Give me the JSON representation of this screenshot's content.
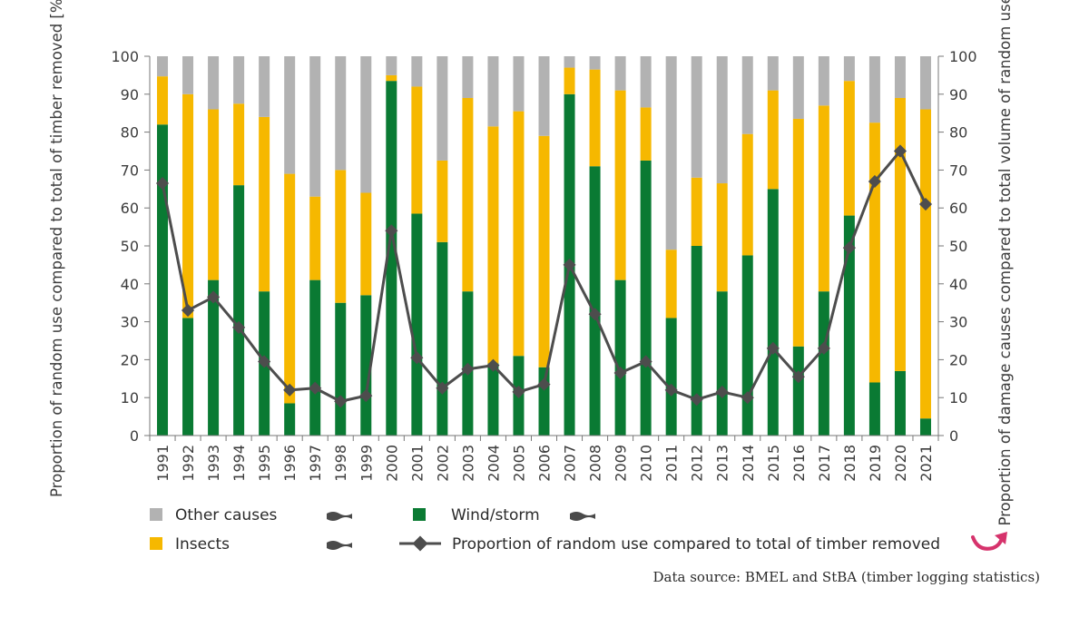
{
  "chart_data": {
    "type": "bar",
    "stacked": true,
    "categories": [
      "1991",
      "1992",
      "1993",
      "1994",
      "1995",
      "1996",
      "1997",
      "1998",
      "1999",
      "2000",
      "2001",
      "2002",
      "2003",
      "2004",
      "2005",
      "2006",
      "2007",
      "2008",
      "2009",
      "2010",
      "2011",
      "2012",
      "2013",
      "2014",
      "2015",
      "2016",
      "2017",
      "2018",
      "2019",
      "2020",
      "2021"
    ],
    "series": [
      {
        "name": "Wind/storm",
        "color": "#0a7a33",
        "values": [
          82,
          31,
          41,
          66,
          38,
          8.5,
          41,
          35,
          37,
          93.5,
          58.5,
          51,
          38,
          19,
          21,
          18,
          90,
          71,
          41,
          72.5,
          31,
          50,
          38,
          47.5,
          65,
          23.5,
          38,
          58,
          14,
          17,
          4.5
        ]
      },
      {
        "name": "Insects",
        "color": "#f6b800",
        "values": [
          12.7,
          59,
          45,
          21.5,
          46,
          60.5,
          22,
          35,
          27,
          1.5,
          33.5,
          21.5,
          51,
          62.5,
          64.5,
          61,
          7,
          25.5,
          50,
          14,
          18,
          18,
          28.5,
          32,
          26,
          60,
          49,
          35.5,
          68.5,
          72,
          81.5
        ]
      },
      {
        "name": "Other causes",
        "color": "#b2b2b2",
        "values": [
          5.3,
          10,
          14,
          12.5,
          16,
          31,
          37,
          30,
          36,
          5,
          8,
          27.5,
          11,
          18.5,
          14.5,
          21,
          3,
          3.5,
          9,
          13.5,
          51,
          32,
          33.5,
          20.5,
          9,
          16.5,
          13,
          6.5,
          17.5,
          11,
          14
        ]
      }
    ],
    "line_series": {
      "name": "Proportion of random use compared to total of timber removed",
      "color": "#4d4d4d",
      "values": [
        66.5,
        33,
        36.5,
        28.5,
        19.5,
        12,
        12.5,
        9,
        10.5,
        54,
        20.5,
        12.5,
        17.5,
        18.5,
        11.5,
        13.5,
        45,
        32,
        16.5,
        19.5,
        12,
        9.5,
        11.5,
        10,
        23,
        15.5,
        23,
        49.5,
        67,
        75,
        61
      ]
    },
    "ylabel_left": "Proportion of random use compared to total of timber removed [%]",
    "ylabel_right": "Proportion of damage causes compared to total volume of random use [%]",
    "ylim": [
      0,
      100
    ],
    "yticks": [
      0,
      10,
      20,
      30,
      40,
      50,
      60,
      70,
      80,
      90,
      100
    ],
    "legend": {
      "other_causes": "Other causes",
      "insects": "Insects",
      "wind_storm": "Wind/storm",
      "line": "Proportion of random use compared to total of timber removed"
    },
    "source": "Data source: BMEL and StBA (timber logging statistics)"
  },
  "colors": {
    "wind": "#0a7a33",
    "insects": "#f6b800",
    "other": "#b2b2b2",
    "line": "#4d4d4d",
    "arrow": "#d6336c",
    "axis": "#777777",
    "text": "#3c3c3c"
  },
  "icons": {
    "trend_flat": "wavy-dash-icon",
    "trend_up": "curved-up-arrow-icon"
  }
}
